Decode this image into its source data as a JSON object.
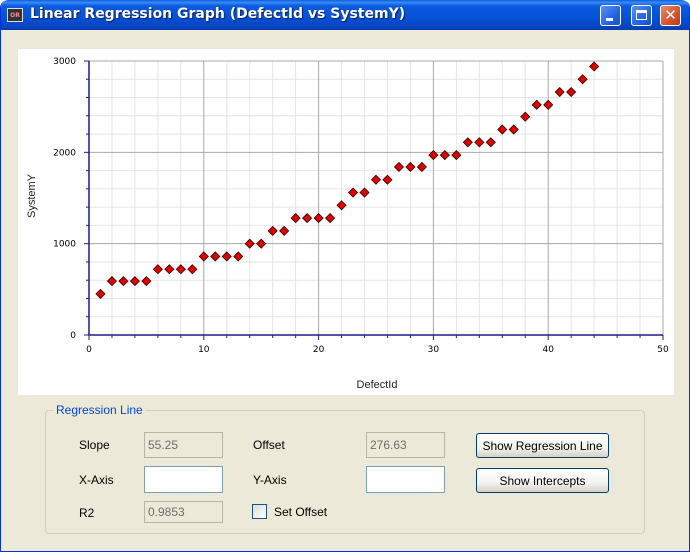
{
  "window": {
    "title": "Linear Regression Graph (DefectId vs SystemY)",
    "app_icon_text": "OR"
  },
  "chart_data": {
    "type": "scatter",
    "xlabel": "DefectId",
    "ylabel": "SystemY",
    "xlim": [
      0,
      50
    ],
    "ylim": [
      0,
      3000
    ],
    "x_ticks": [
      0,
      10,
      20,
      30,
      40,
      50
    ],
    "y_ticks": [
      0,
      1000,
      2000,
      3000
    ],
    "grid": true,
    "marker": "diamond",
    "marker_color": "#E00000",
    "series": [
      {
        "x": [
          1,
          2,
          3,
          4,
          5,
          6,
          7,
          8,
          9,
          10,
          11,
          12,
          13,
          14,
          15,
          16,
          17,
          18,
          19,
          20,
          21,
          22,
          23,
          24,
          25,
          26,
          27,
          28,
          29,
          30,
          31,
          32,
          33,
          34,
          35,
          36,
          37,
          38,
          39,
          40,
          41,
          42,
          43,
          44
        ],
        "y": [
          450,
          590,
          590,
          590,
          590,
          720,
          720,
          720,
          720,
          860,
          860,
          860,
          860,
          1000,
          1000,
          1140,
          1140,
          1280,
          1280,
          1280,
          1280,
          1420,
          1560,
          1560,
          1700,
          1700,
          1840,
          1840,
          1840,
          1970,
          1970,
          1970,
          2110,
          2110,
          2110,
          2250,
          2250,
          2390,
          2520,
          2520,
          2660,
          2660,
          2800,
          2940
        ]
      }
    ]
  },
  "regression": {
    "group_title": "Regression Line",
    "slope_label": "Slope",
    "slope_value": "55.25",
    "offset_label": "Offset",
    "offset_value": "276.63",
    "xaxis_label": "X-Axis",
    "xaxis_value": "",
    "yaxis_label": "Y-Axis",
    "yaxis_value": "",
    "r2_label": "R2",
    "r2_value": "0.9853",
    "set_offset_label": "Set Offset",
    "set_offset_checked": false,
    "show_regression_label": "Show Regression Line",
    "show_intercepts_label": "Show Intercepts"
  }
}
